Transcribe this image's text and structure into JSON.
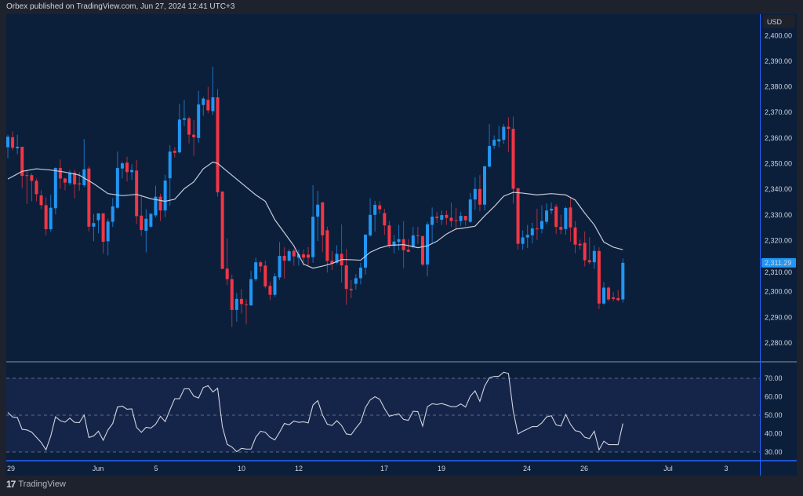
{
  "header": {
    "text": "Orbex published on TradingView.com, Jun 27, 2024 12:41 UTC+3"
  },
  "footer": {
    "logo_icon": "tradingview-logo-icon",
    "brand": "TradingView"
  },
  "colors": {
    "up": "#2196f3",
    "down": "#f23645",
    "ma": "#c9ccd6",
    "rsi": "#d1d4dc",
    "background": "#0b1f3b",
    "rsi_band": "#15254a",
    "last_price_bg": "#2196f3"
  },
  "chart_data": [
    {
      "type": "candlestick",
      "currency_button": "USD",
      "ylim": [
        2275,
        2402
      ],
      "y_ticks": [
        "2,280.00",
        "2,290.00",
        "2,300.00",
        "2,310.00",
        "2,320.00",
        "2,330.00",
        "2,340.00",
        "2,350.00",
        "2,360.00",
        "2,370.00",
        "2,380.00",
        "2,390.00",
        "2,400.00"
      ],
      "y_tick_values": [
        2280,
        2290,
        2300,
        2310,
        2320,
        2330,
        2340,
        2350,
        2360,
        2370,
        2380,
        2390,
        2400
      ],
      "x_ticks": [
        "29",
        "Jun",
        "5",
        "10",
        "12",
        "17",
        "19",
        "24",
        "26",
        "Jul",
        "3"
      ],
      "last_price_label": "2,311.29",
      "last_price": 2311.29,
      "grid": false,
      "ohlc": [
        [
          2356.4,
          2361.3,
          2352.1,
          2360.5
        ],
        [
          2360.3,
          2362.6,
          2355.2,
          2356.2
        ],
        [
          2356.0,
          2361.3,
          2353.7,
          2356.6
        ],
        [
          2356.6,
          2356.6,
          2340.4,
          2345.2
        ],
        [
          2345.5,
          2347.5,
          2334.3,
          2345.3
        ],
        [
          2345.5,
          2346.2,
          2335.3,
          2343.3
        ],
        [
          2343.3,
          2344.2,
          2335.3,
          2338.1
        ],
        [
          2337.6,
          2339.6,
          2332.2,
          2333.8
        ],
        [
          2333.8,
          2336.8,
          2322.0,
          2324.4
        ],
        [
          2324.4,
          2337.9,
          2323.5,
          2332.8
        ],
        [
          2332.6,
          2348.5,
          2330.2,
          2348.3
        ],
        [
          2348.3,
          2351.6,
          2340.2,
          2344.2
        ],
        [
          2344.2,
          2344.5,
          2339.6,
          2342.6
        ],
        [
          2342.4,
          2347.5,
          2341.6,
          2346.5
        ],
        [
          2346.5,
          2347.5,
          2336.5,
          2341.9
        ],
        [
          2342.3,
          2346.7,
          2339.4,
          2341.9
        ],
        [
          2341.6,
          2359.6,
          2340.9,
          2347.8
        ],
        [
          2348.1,
          2348.9,
          2323.5,
          2325.4
        ],
        [
          2325.4,
          2330.4,
          2319.7,
          2326.8
        ],
        [
          2327.9,
          2330.6,
          2322.8,
          2330.6
        ],
        [
          2330.6,
          2330.6,
          2314.9,
          2319.5
        ],
        [
          2319.7,
          2328.5,
          2314.2,
          2327.4
        ],
        [
          2327.3,
          2336.5,
          2325.3,
          2333.3
        ],
        [
          2332.8,
          2354.7,
          2332.3,
          2348.3
        ],
        [
          2348.1,
          2350.8,
          2344.2,
          2350.1
        ],
        [
          2350.4,
          2352.7,
          2343.0,
          2346.7
        ],
        [
          2346.7,
          2349.8,
          2343.7,
          2347.5
        ],
        [
          2347.3,
          2351.4,
          2326.4,
          2329.5
        ],
        [
          2329.7,
          2337.8,
          2321.8,
          2324.1
        ],
        [
          2323.8,
          2332.2,
          2315.4,
          2328.5
        ],
        [
          2325.4,
          2330.7,
          2325.0,
          2330.4
        ],
        [
          2329.8,
          2341.4,
          2329.1,
          2337.1
        ],
        [
          2337.1,
          2338.3,
          2327.6,
          2331.7
        ],
        [
          2331.7,
          2345.7,
          2329.1,
          2343.4
        ],
        [
          2344.3,
          2357.2,
          2333.7,
          2354.7
        ],
        [
          2355.0,
          2356.5,
          2352.4,
          2354.2
        ],
        [
          2354.4,
          2373.3,
          2354.0,
          2367.2
        ],
        [
          2367.1,
          2374.9,
          2364.7,
          2367.7
        ],
        [
          2367.7,
          2368.3,
          2357.9,
          2361.3
        ],
        [
          2361.3,
          2366.9,
          2353.1,
          2360.3
        ],
        [
          2360.0,
          2378.5,
          2358.2,
          2373.1
        ],
        [
          2372.9,
          2376.1,
          2368.7,
          2375.4
        ],
        [
          2374.9,
          2380.0,
          2369.8,
          2370.8
        ],
        [
          2370.5,
          2387.9,
          2369.0,
          2375.9
        ],
        [
          2375.9,
          2379.2,
          2337.1,
          2338.8
        ],
        [
          2339.1,
          2339.1,
          2308.9,
          2308.9
        ],
        [
          2309.0,
          2320.8,
          2302.6,
          2304.9
        ],
        [
          2304.9,
          2306.7,
          2286.2,
          2292.9
        ],
        [
          2292.9,
          2299.5,
          2288.3,
          2297.2
        ],
        [
          2297.2,
          2301.0,
          2291.5,
          2295.2
        ],
        [
          2295.1,
          2297.0,
          2287.3,
          2294.8
        ],
        [
          2294.7,
          2308.2,
          2294.4,
          2304.9
        ],
        [
          2304.9,
          2313.3,
          2304.1,
          2311.5
        ],
        [
          2311.5,
          2312.1,
          2307.7,
          2309.9
        ],
        [
          2310.2,
          2312.1,
          2301.3,
          2302.1
        ],
        [
          2302.3,
          2303.9,
          2296.7,
          2298.8
        ],
        [
          2298.8,
          2307.2,
          2298.0,
          2306.0
        ],
        [
          2305.6,
          2319.4,
          2304.6,
          2314.0
        ],
        [
          2314.0,
          2317.4,
          2305.1,
          2312.1
        ],
        [
          2312.1,
          2316.6,
          2311.8,
          2315.8
        ],
        [
          2316.0,
          2316.9,
          2310.2,
          2313.8
        ],
        [
          2313.3,
          2316.4,
          2310.2,
          2314.6
        ],
        [
          2314.6,
          2316.4,
          2310.2,
          2313.3
        ],
        [
          2314.5,
          2317.4,
          2310.3,
          2313.3
        ],
        [
          2313.5,
          2341.6,
          2311.3,
          2329.3
        ],
        [
          2329.3,
          2339.4,
          2319.8,
          2334.0
        ],
        [
          2334.9,
          2334.9,
          2315.4,
          2322.0
        ],
        [
          2324.0,
          2325.4,
          2307.5,
          2312.0
        ],
        [
          2312.1,
          2315.9,
          2308.5,
          2311.0
        ],
        [
          2311.3,
          2318.1,
          2310.8,
          2314.8
        ],
        [
          2314.8,
          2326.3,
          2303.6,
          2310.3
        ],
        [
          2310.3,
          2316.7,
          2294.9,
          2301.1
        ],
        [
          2301.1,
          2304.6,
          2297.5,
          2300.6
        ],
        [
          2303.1,
          2306.9,
          2300.8,
          2305.3
        ],
        [
          2305.3,
          2311.3,
          2302.9,
          2309.4
        ],
        [
          2309.4,
          2322.3,
          2306.7,
          2322.3
        ],
        [
          2322.0,
          2336.5,
          2321.5,
          2330.0
        ],
        [
          2330.0,
          2335.5,
          2323.5,
          2333.9
        ],
        [
          2333.7,
          2335.3,
          2330.4,
          2332.2
        ],
        [
          2330.7,
          2332.4,
          2322.2,
          2325.9
        ],
        [
          2325.9,
          2327.6,
          2317.1,
          2317.9
        ],
        [
          2317.9,
          2322.2,
          2315.0,
          2319.6
        ],
        [
          2319.4,
          2326.1,
          2316.2,
          2320.5
        ],
        [
          2320.5,
          2327.6,
          2309.2,
          2316.2
        ],
        [
          2316.4,
          2320.5,
          2315.4,
          2315.6
        ],
        [
          2317.4,
          2325.3,
          2316.9,
          2322.0
        ],
        [
          2322.0,
          2325.3,
          2318.7,
          2321.7
        ],
        [
          2321.7,
          2322.0,
          2310.0,
          2310.6
        ],
        [
          2310.6,
          2327.3,
          2306.0,
          2326.3
        ],
        [
          2326.1,
          2332.9,
          2318.7,
          2329.3
        ],
        [
          2329.3,
          2331.2,
          2326.9,
          2328.8
        ],
        [
          2328.1,
          2331.7,
          2326.1,
          2329.9
        ],
        [
          2330.0,
          2331.7,
          2326.1,
          2328.8
        ],
        [
          2328.9,
          2334.8,
          2325.3,
          2327.6
        ],
        [
          2327.9,
          2332.7,
          2324.5,
          2327.8
        ],
        [
          2327.6,
          2331.2,
          2325.6,
          2329.6
        ],
        [
          2329.6,
          2329.6,
          2325.9,
          2327.9
        ],
        [
          2327.3,
          2338.5,
          2326.9,
          2336.0
        ],
        [
          2336.0,
          2344.7,
          2332.0,
          2340.1
        ],
        [
          2340.1,
          2345.5,
          2331.4,
          2334.0
        ],
        [
          2334.0,
          2349.0,
          2331.7,
          2349.0
        ],
        [
          2348.8,
          2365.4,
          2348.8,
          2356.9
        ],
        [
          2357.0,
          2361.0,
          2355.7,
          2359.3
        ],
        [
          2358.7,
          2364.7,
          2356.4,
          2359.5
        ],
        [
          2359.3,
          2365.4,
          2357.7,
          2364.4
        ],
        [
          2364.4,
          2368.1,
          2354.5,
          2363.6
        ],
        [
          2363.6,
          2368.4,
          2334.4,
          2340.2
        ],
        [
          2340.4,
          2340.4,
          2316.4,
          2318.7
        ],
        [
          2318.7,
          2324.0,
          2316.4,
          2321.2
        ],
        [
          2321.2,
          2326.1,
          2317.1,
          2322.2
        ],
        [
          2322.0,
          2326.9,
          2318.9,
          2324.7
        ],
        [
          2324.7,
          2332.4,
          2320.2,
          2324.5
        ],
        [
          2324.5,
          2333.7,
          2322.8,
          2327.6
        ],
        [
          2327.3,
          2334.5,
          2326.3,
          2331.7
        ],
        [
          2331.7,
          2334.8,
          2330.4,
          2332.4
        ],
        [
          2333.2,
          2334.2,
          2322.5,
          2325.3
        ],
        [
          2325.3,
          2330.0,
          2322.5,
          2324.2
        ],
        [
          2324.5,
          2333.2,
          2322.2,
          2332.7
        ],
        [
          2332.9,
          2336.8,
          2319.6,
          2325.1
        ],
        [
          2325.1,
          2327.6,
          2315.0,
          2318.4
        ],
        [
          2318.7,
          2320.3,
          2316.4,
          2318.1
        ],
        [
          2319.1,
          2323.5,
          2309.9,
          2312.3
        ],
        [
          2312.3,
          2321.3,
          2310.8,
          2311.5
        ],
        [
          2311.5,
          2318.1,
          2308.9,
          2315.9
        ],
        [
          2315.9,
          2317.4,
          2293.2,
          2295.4
        ],
        [
          2295.4,
          2303.8,
          2294.9,
          2301.6
        ],
        [
          2301.6,
          2302.1,
          2296.3,
          2297.0
        ],
        [
          2297.8,
          2299.8,
          2296.3,
          2297.2
        ],
        [
          2297.5,
          2300.6,
          2296.3,
          2296.7
        ],
        [
          2297.0,
          2313.0,
          2295.8,
          2311.29
        ]
      ],
      "moving_average": [
        [
          0,
          2344.0
        ],
        [
          3,
          2347.0
        ],
        [
          6,
          2348.0
        ],
        [
          9,
          2347.5
        ],
        [
          12,
          2346.7
        ],
        [
          15,
          2345.5
        ],
        [
          18,
          2342.2
        ],
        [
          21,
          2338.3
        ],
        [
          24,
          2337.5
        ],
        [
          27,
          2338.0
        ],
        [
          30,
          2336.3
        ],
        [
          33,
          2335.3
        ],
        [
          35,
          2336.1
        ],
        [
          37,
          2340.2
        ],
        [
          39,
          2342.9
        ],
        [
          41,
          2348.0
        ],
        [
          43,
          2350.6
        ],
        [
          44,
          2350.1
        ],
        [
          46,
          2347.0
        ],
        [
          49,
          2342.4
        ],
        [
          52,
          2337.8
        ],
        [
          54,
          2335.3
        ],
        [
          56,
          2328.1
        ],
        [
          58,
          2323.0
        ],
        [
          60,
          2317.9
        ],
        [
          62,
          2310.8
        ],
        [
          64,
          2309.2
        ],
        [
          66,
          2310.0
        ],
        [
          68,
          2311.0
        ],
        [
          70,
          2312.6
        ],
        [
          72,
          2312.5
        ],
        [
          74,
          2312.3
        ],
        [
          76,
          2315.4
        ],
        [
          78,
          2317.1
        ],
        [
          80,
          2318.1
        ],
        [
          83,
          2318.4
        ],
        [
          86,
          2317.2
        ],
        [
          88,
          2317.9
        ],
        [
          90,
          2319.7
        ],
        [
          92,
          2322.5
        ],
        [
          94,
          2324.5
        ],
        [
          95,
          2324.7
        ],
        [
          98,
          2325.6
        ],
        [
          100,
          2329.6
        ],
        [
          102,
          2333.2
        ],
        [
          104,
          2337.3
        ],
        [
          106,
          2338.8
        ],
        [
          108,
          2338.5
        ],
        [
          111,
          2337.8
        ],
        [
          114,
          2338.3
        ],
        [
          117,
          2337.8
        ],
        [
          119,
          2335.8
        ],
        [
          121,
          2330.7
        ],
        [
          123,
          2326.1
        ],
        [
          125,
          2319.4
        ],
        [
          127,
          2317.4
        ],
        [
          129,
          2316.4
        ]
      ]
    },
    {
      "type": "line",
      "ylim": [
        26,
        78
      ],
      "y_ticks": [
        "30.00",
        "40.00",
        "50.00",
        "60.00",
        "70.00"
      ],
      "y_tick_values": [
        30,
        40,
        50,
        60,
        70
      ],
      "levels": [
        30,
        50,
        70
      ],
      "values": [
        51.5,
        49,
        48.7,
        42.3,
        42,
        40.8,
        38,
        35.2,
        31.2,
        38.7,
        49.1,
        47,
        46.2,
        48.4,
        46.1,
        46,
        50.1,
        37.9,
        38.7,
        41.3,
        36.4,
        42,
        45.5,
        54.4,
        54.9,
        53.2,
        53.4,
        43.4,
        40.7,
        43.4,
        43,
        45.1,
        49.4,
        46.5,
        52.9,
        58.9,
        58.9,
        64.3,
        64.3,
        60.3,
        59.3,
        65,
        66,
        62.6,
        64.6,
        43.7,
        34.2,
        32.7,
        30.2,
        32,
        31.6,
        31.6,
        38,
        41.3,
        40.7,
        38,
        36.6,
        40.8,
        45.5,
        44.8,
        46.8,
        46.1,
        46.4,
        45.8,
        55.5,
        57.9,
        50.1,
        45.1,
        44.4,
        47,
        44.4,
        39.8,
        39.4,
        43,
        46.2,
        54.1,
        58.3,
        60,
        58.6,
        53.6,
        49.4,
        50.1,
        50.7,
        47.7,
        47.2,
        52.1,
        51.9,
        44.1,
        54.6,
        56.2,
        55.8,
        56.3,
        55.5,
        54.6,
        54.6,
        56.1,
        54.4,
        60.3,
        63.2,
        57.5,
        65.7,
        70.3,
        71,
        71.1,
        73.3,
        72.6,
        52.2,
        39.8,
        41.3,
        42.5,
        43.8,
        43.8,
        45.8,
        49.1,
        49.7,
        44.7,
        44.1,
        50.4,
        45.1,
        41.6,
        41,
        38,
        37.3,
        41.3,
        31.2,
        35.9,
        34,
        34,
        34,
        45.5
      ]
    }
  ]
}
